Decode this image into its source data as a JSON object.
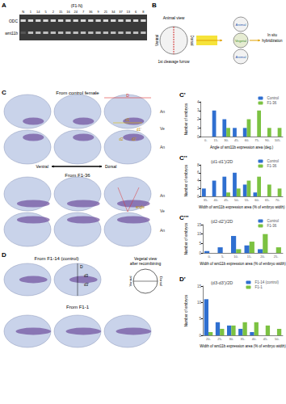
{
  "figure": {
    "panel_labels": [
      "A",
      "B",
      "C",
      "C'",
      "C''",
      "C'''",
      "D",
      "D'"
    ],
    "A": {
      "header": "(F1-N)",
      "lanes": [
        "N",
        "1",
        "14",
        "5",
        "2",
        "15",
        "16",
        "24",
        "7",
        "36",
        "9",
        "21",
        "34",
        "37",
        "13",
        "6",
        "8"
      ],
      "rows": [
        "ODC",
        "wnt11b"
      ]
    },
    "B": {
      "view": "Animal view",
      "left": "Ventral",
      "right": "Dorsal",
      "middle": "1st cleavage furrow",
      "stack": [
        "Animal",
        "Vegetal",
        "Animal"
      ],
      "end": "In situ hybridization"
    },
    "C": {
      "top_title": "From control female",
      "bottom_title": "From F1-36",
      "measures": [
        "D",
        "d1",
        "d1'",
        "d2",
        "d2'",
        "angle"
      ],
      "side_labels": [
        "An",
        "Ve",
        "An"
      ],
      "direction": [
        "Ventral",
        "Dorsal"
      ]
    },
    "D": {
      "top_title": "From F1-14 (control)",
      "bottom_title": "From F1-1",
      "measures": [
        "D",
        "d3",
        "d3'"
      ],
      "view_label": "Vegetal view after recombining",
      "direction": [
        "Ventral",
        "Dorsal"
      ]
    }
  },
  "chart_data": [
    {
      "type": "bar",
      "panel": "C'",
      "ylabel": "Number of embryos",
      "xlabel": "Angle of wnt11b expression area (deg.)",
      "categories": [
        "0-",
        "15-",
        "30-",
        "45-",
        "60-",
        "75-",
        "90-",
        "105-"
      ],
      "series": [
        {
          "name": "Control",
          "color": "#2f6fd0",
          "values": [
            0,
            3,
            2,
            1,
            1,
            0,
            0,
            0
          ]
        },
        {
          "name": "F1-36",
          "color": "#7cc242",
          "values": [
            0,
            0,
            1,
            0,
            2,
            3,
            1,
            1
          ]
        }
      ],
      "ylim": [
        0,
        4
      ],
      "yticks": [
        0,
        1,
        2,
        3,
        4
      ],
      "legend": "upper right"
    },
    {
      "type": "bar",
      "panel": "C''",
      "title": "(d1-d1')/2D",
      "ylabel": "Number of embryos",
      "xlabel": "Width of wnt11b expression area (% of embryo width)",
      "categories": [
        "35-",
        "40-",
        "45-",
        "50-",
        "55-",
        "60-",
        "65-",
        "70-"
      ],
      "series": [
        {
          "name": "Control",
          "color": "#2f6fd0",
          "values": [
            2,
            4,
            5,
            6,
            3,
            1,
            0,
            0
          ]
        },
        {
          "name": "F1-36",
          "color": "#7cc242",
          "values": [
            0,
            0,
            1,
            2,
            4,
            5,
            3,
            2
          ]
        }
      ],
      "ylim": [
        0,
        8
      ],
      "yticks": [
        0,
        2,
        4,
        6,
        8
      ],
      "legend": "upper right"
    },
    {
      "type": "bar",
      "panel": "C'''",
      "title": "(d2-d2')/2D",
      "ylabel": "Number of embryos",
      "xlabel": "Width of wnt11b expression area (% of embryo width)",
      "categories": [
        "0-",
        "5-",
        "10-",
        "15-",
        "20-",
        "25-"
      ],
      "series": [
        {
          "name": "Control",
          "color": "#2f6fd0",
          "values": [
            1,
            3,
            9,
            4,
            2,
            0
          ]
        },
        {
          "name": "F1-36",
          "color": "#7cc242",
          "values": [
            0,
            0,
            2,
            6,
            10,
            3
          ]
        }
      ],
      "ylim": [
        0,
        15
      ],
      "yticks": [
        0,
        5,
        10,
        15
      ],
      "legend": "upper right"
    },
    {
      "type": "bar",
      "panel": "D'",
      "title": "(d3-d3')/2D",
      "ylabel": "Number of embryos",
      "xlabel": "Width of wnt11b expression area (% of embryo width)",
      "categories": [
        "20-",
        "25-",
        "30-",
        "35-",
        "40-",
        "45-",
        "50-"
      ],
      "series": [
        {
          "name": "F1-14 (control)",
          "color": "#2f6fd0",
          "values": [
            11,
            4,
            3,
            2,
            1,
            0,
            0
          ]
        },
        {
          "name": "F1-1",
          "color": "#7cc242",
          "values": [
            1,
            2,
            3,
            4,
            4,
            3,
            2
          ]
        }
      ],
      "ylim": [
        0,
        15
      ],
      "yticks": [
        0,
        5,
        10,
        15
      ],
      "legend": "upper right"
    }
  ]
}
